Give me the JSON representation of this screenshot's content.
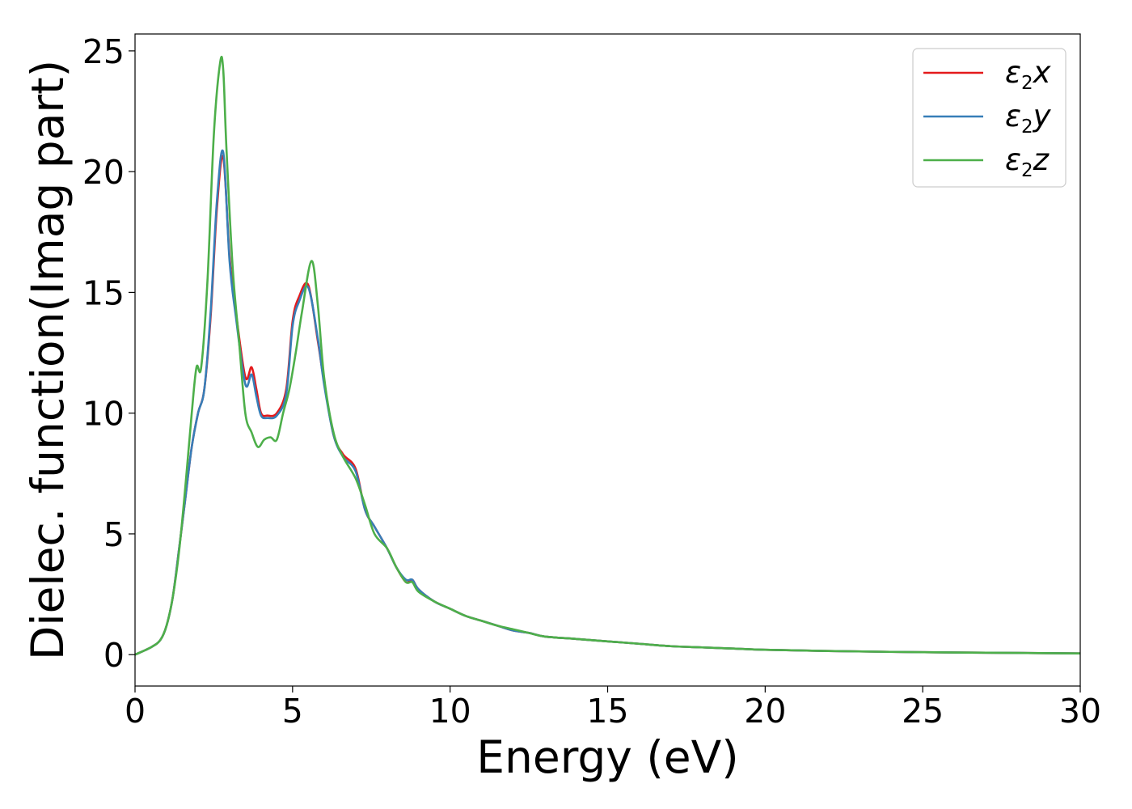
{
  "chart_data": {
    "type": "line",
    "title": "",
    "xlabel": "Energy (eV)",
    "ylabel": "Dielec. function(Imag part)",
    "xlim": [
      0,
      30
    ],
    "ylim": [
      -1.3,
      25.7
    ],
    "xticks": [
      0,
      5,
      10,
      15,
      20,
      25,
      30
    ],
    "yticks": [
      0,
      5,
      10,
      15,
      20,
      25
    ],
    "xtick_labels": [
      "0",
      "5",
      "10",
      "15",
      "20",
      "25",
      "30"
    ],
    "ytick_labels": [
      "0",
      "5",
      "10",
      "15",
      "20",
      "25"
    ],
    "grid": false,
    "legend_position": "top-right",
    "series": [
      {
        "name": "ε2x",
        "symbol": "ε",
        "subscript": "2",
        "axis": "x",
        "color": "#e41a1c",
        "x": [
          0,
          0.5,
          0.8,
          1.0,
          1.2,
          1.4,
          1.6,
          1.8,
          2.0,
          2.2,
          2.4,
          2.6,
          2.8,
          3.0,
          3.2,
          3.5,
          3.7,
          3.85,
          4.0,
          4.2,
          4.5,
          4.8,
          5.0,
          5.2,
          5.5,
          5.8,
          6.0,
          6.3,
          6.6,
          7.0,
          7.3,
          7.6,
          8.0,
          8.3,
          8.6,
          8.8,
          9.0,
          9.5,
          10.0,
          10.5,
          11.0,
          11.5,
          12.0,
          12.5,
          13.0,
          14.0,
          15.0,
          16.0,
          17.0,
          18.0,
          19.0,
          20.0,
          22.0,
          25.0,
          28.0,
          30.0
        ],
        "y": [
          0,
          0.3,
          0.6,
          1.2,
          2.4,
          4.4,
          6.5,
          8.6,
          10.0,
          11.0,
          14.0,
          18.5,
          20.6,
          16.5,
          14.2,
          11.5,
          11.9,
          11.0,
          10.0,
          9.9,
          10.0,
          11.0,
          13.8,
          14.8,
          15.3,
          13.0,
          11.3,
          9.1,
          8.3,
          7.7,
          6.0,
          5.3,
          4.4,
          3.6,
          3.0,
          3.1,
          2.7,
          2.2,
          1.9,
          1.6,
          1.4,
          1.2,
          1.0,
          0.9,
          0.75,
          0.65,
          0.55,
          0.45,
          0.35,
          0.3,
          0.25,
          0.2,
          0.15,
          0.1,
          0.07,
          0.05
        ]
      },
      {
        "name": "ε2y",
        "symbol": "ε",
        "subscript": "2",
        "axis": "y",
        "color": "#377eb8",
        "x": [
          0,
          0.5,
          0.8,
          1.0,
          1.2,
          1.4,
          1.6,
          1.8,
          2.0,
          2.2,
          2.4,
          2.6,
          2.8,
          3.0,
          3.2,
          3.5,
          3.7,
          3.85,
          4.0,
          4.2,
          4.5,
          4.8,
          5.0,
          5.2,
          5.5,
          5.8,
          6.0,
          6.3,
          6.6,
          7.0,
          7.3,
          7.6,
          8.0,
          8.3,
          8.6,
          8.8,
          9.0,
          9.5,
          10.0,
          10.5,
          11.0,
          11.5,
          12.0,
          12.5,
          13.0,
          14.0,
          15.0,
          16.0,
          17.0,
          18.0,
          19.0,
          20.0,
          22.0,
          25.0,
          28.0,
          30.0
        ],
        "y": [
          0,
          0.3,
          0.6,
          1.2,
          2.4,
          4.4,
          6.5,
          8.6,
          10.0,
          11.0,
          14.2,
          18.8,
          20.8,
          16.3,
          14.0,
          11.2,
          11.6,
          10.7,
          9.9,
          9.8,
          9.9,
          10.8,
          13.6,
          14.6,
          15.2,
          13.1,
          11.2,
          9.1,
          8.2,
          7.6,
          6.0,
          5.3,
          4.4,
          3.6,
          3.1,
          3.1,
          2.7,
          2.2,
          1.9,
          1.6,
          1.4,
          1.2,
          1.0,
          0.9,
          0.75,
          0.65,
          0.55,
          0.45,
          0.35,
          0.3,
          0.25,
          0.2,
          0.15,
          0.1,
          0.07,
          0.05
        ]
      },
      {
        "name": "ε2z",
        "symbol": "ε",
        "subscript": "2",
        "axis": "z",
        "color": "#4daf4a",
        "x": [
          0,
          0.5,
          0.8,
          1.0,
          1.2,
          1.4,
          1.6,
          1.8,
          1.95,
          2.1,
          2.3,
          2.5,
          2.7,
          2.8,
          2.9,
          3.1,
          3.3,
          3.5,
          3.7,
          3.9,
          4.1,
          4.3,
          4.5,
          4.7,
          4.9,
          5.1,
          5.3,
          5.6,
          5.8,
          6.0,
          6.3,
          6.6,
          7.0,
          7.3,
          7.6,
          8.0,
          8.3,
          8.6,
          8.8,
          9.0,
          9.5,
          10.0,
          10.5,
          11.0,
          11.5,
          12.0,
          12.5,
          13.0,
          14.0,
          15.0,
          16.0,
          17.0,
          18.0,
          19.0,
          20.0,
          22.0,
          25.0,
          28.0,
          30.0
        ],
        "y": [
          0,
          0.3,
          0.6,
          1.2,
          2.4,
          4.3,
          7.0,
          10.0,
          11.9,
          11.9,
          15.5,
          21.5,
          24.5,
          24.2,
          21.0,
          16.0,
          13.0,
          10.0,
          9.2,
          8.6,
          8.9,
          9.0,
          8.9,
          10.0,
          11.0,
          12.5,
          14.2,
          16.3,
          14.5,
          11.5,
          9.2,
          8.2,
          7.3,
          6.2,
          5.0,
          4.4,
          3.6,
          3.0,
          3.0,
          2.6,
          2.2,
          1.9,
          1.6,
          1.4,
          1.2,
          1.05,
          0.9,
          0.75,
          0.65,
          0.55,
          0.45,
          0.35,
          0.3,
          0.25,
          0.2,
          0.15,
          0.1,
          0.07,
          0.05
        ]
      }
    ]
  }
}
